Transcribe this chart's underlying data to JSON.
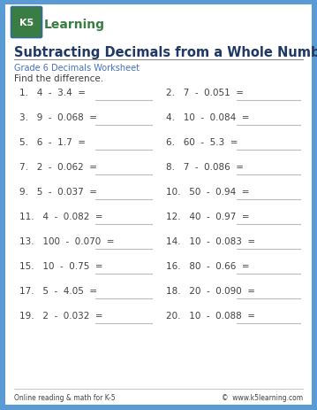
{
  "title": "Subtracting Decimals from a Whole Number",
  "subtitle": "Grade 6 Decimals Worksheet",
  "instruction": "Find the difference.",
  "border_color": "#5b9bd5",
  "title_color": "#1f3864",
  "subtitle_color": "#4472c4",
  "text_color": "#404040",
  "footer_left": "Online reading & math for K-5",
  "footer_right": "©  www.k5learning.com",
  "problems": [
    [
      "1.   4  -  3.4  =",
      "2.   7  -  0.051  ="
    ],
    [
      "3.   9  -  0.068  =",
      "4.   10  -  0.084  ="
    ],
    [
      "5.   6  -  1.7  =",
      "6.   60  -  5.3  ="
    ],
    [
      "7.   2  -  0.062  =",
      "8.   7  -  0.086  ="
    ],
    [
      "9.   5  -  0.037  =",
      "10.   50  -  0.94  ="
    ],
    [
      "11.   4  -  0.082  =",
      "12.   40  -  0.97  ="
    ],
    [
      "13.   100  -  0.070  =",
      "14.   10  -  0.083  ="
    ],
    [
      "15.   10  -  0.75  =",
      "16.   80  -  0.66  ="
    ],
    [
      "17.   5  -  4.05  =",
      "18.   20  -  0.090  ="
    ],
    [
      "19.   2  -  0.032  =",
      "20.   10  -  0.088  ="
    ]
  ],
  "logo_box_color": "#3a7d44",
  "logo_border_color": "#2e6b9e",
  "logo_text_color": "#ffffff",
  "learning_color": "#3a7d44",
  "background_color": "#ffffff",
  "line_color": "#bbbbbb",
  "title_underline_color": "#888888"
}
